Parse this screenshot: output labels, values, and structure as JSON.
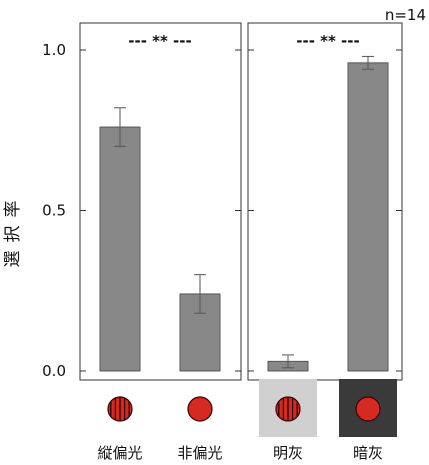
{
  "chart_data": {
    "type": "bar",
    "ylabel": "選択率",
    "n_label": "n=14",
    "ylim": [
      0,
      1.0
    ],
    "yticks": [
      {
        "value": 0.0,
        "label": "0.0"
      },
      {
        "value": 0.5,
        "label": "0.5"
      },
      {
        "value": 1.0,
        "label": "1.0"
      }
    ],
    "panels": [
      {
        "significance": "--- ** ---",
        "bars": [
          {
            "label": "縦偏光",
            "value": 0.76,
            "err": 0.06,
            "stimulus": "striped-circle",
            "background": "#ffffff"
          },
          {
            "label": "非偏光",
            "value": 0.24,
            "err": 0.06,
            "stimulus": "solid-circle",
            "background": "#ffffff"
          }
        ]
      },
      {
        "significance": "--- ** ---",
        "bars": [
          {
            "label": "明灰",
            "value": 0.03,
            "err": 0.02,
            "stimulus": "striped-circle",
            "background": "#d0d0d0"
          },
          {
            "label": "暗灰",
            "value": 0.96,
            "err": 0.02,
            "stimulus": "solid-circle",
            "background": "#3a3a3a"
          }
        ]
      }
    ],
    "colors": {
      "bar": "#888888",
      "bar_stroke": "#555555",
      "circle_fill": "#d42a22",
      "circle_stroke": "#3a0000"
    }
  }
}
